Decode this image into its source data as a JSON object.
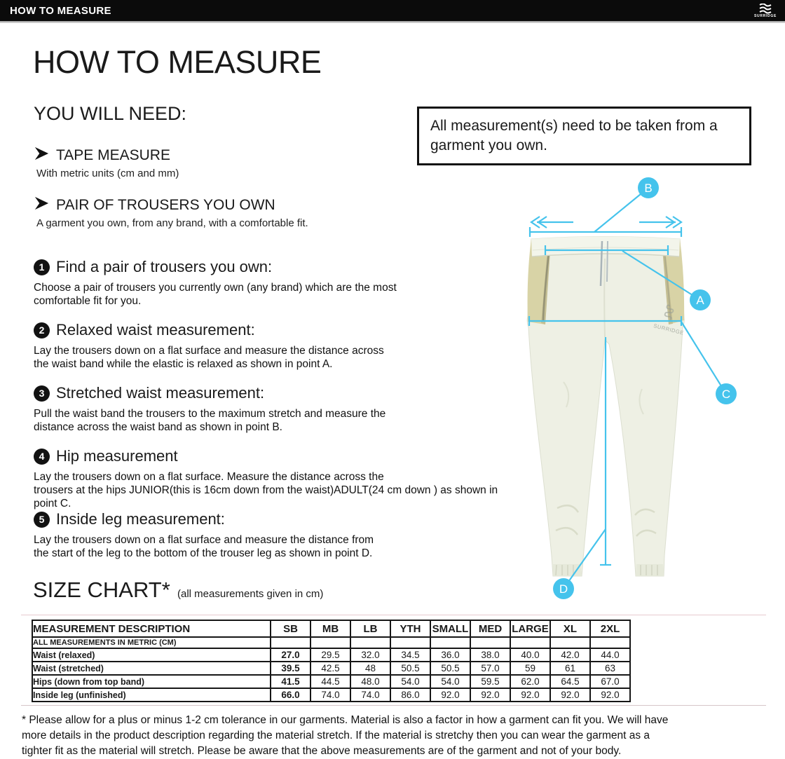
{
  "theme": {
    "accent": "#45c3ec",
    "header_bg": "#0b0b0b",
    "trouser_body": "#eef0e4",
    "trouser_panel": "#d8d3a6"
  },
  "header": {
    "title": "HOW TO MEASURE",
    "brand": "SURRIDGE"
  },
  "intro": {
    "title": "HOW TO MEASURE",
    "need_heading": "YOU WILL NEED:",
    "need_items": [
      {
        "icon": "arrow-bullet-icon",
        "title": "TAPE MEASURE",
        "subtitle": "With metric units (cm and mm)"
      },
      {
        "icon": "arrow-bullet-icon",
        "title": "PAIR OF TROUSERS YOU OWN",
        "subtitle": "A garment you own, from any brand, with a comfortable fit."
      }
    ]
  },
  "notice": "All measurement(s) need to be taken from a\ngarment you own.",
  "steps": [
    {
      "num": "1",
      "title": "Find a pair of trousers you own:",
      "body": "Choose a pair of trousers you currently own (any brand) which are the most\ncomfortable fit for you."
    },
    {
      "num": "2",
      "title": "Relaxed waist measurement:",
      "body": "Lay the trousers down on a flat surface and measure the distance across\nthe waist band while the elastic is relaxed as shown in point A."
    },
    {
      "num": "3",
      "title": "Stretched waist measurement:",
      "body": "Pull the waist band the trousers to the maximum stretch and measure the\ndistance across the waist band as shown in point B."
    },
    {
      "num": "4",
      "title": "Hip measurement",
      "body": "Lay the trousers down on a flat surface. Measure the distance across the\ntrousers at the hips JUNIOR(this is 16cm down from the waist)ADULT(24 cm down ) as shown in point C."
    },
    {
      "num": "5",
      "title": "Inside leg measurement:",
      "body": "Lay the trousers down on a flat surface and measure the distance from\nthe start of the leg to the bottom of the trouser leg as shown in point D."
    }
  ],
  "illustration": {
    "points": [
      "A",
      "B",
      "C",
      "D"
    ],
    "watermark": "SURRIDGE"
  },
  "size_chart": {
    "title": "SIZE CHART*",
    "subtitle": "(all measurements given in cm)",
    "columns": [
      "MEASUREMENT DESCRIPTION",
      "SB",
      "MB",
      "LB",
      "YTH",
      "SMALL",
      "MED",
      "LARGE",
      "XL",
      "2XL"
    ],
    "note_row": "ALL MEASUREMENTS IN METRIC (CM)",
    "rows": [
      {
        "label": "Waist (relaxed)",
        "values": [
          "27.0",
          "29.5",
          "32.0",
          "34.5",
          "36.0",
          "38.0",
          "40.0",
          "42.0",
          "44.0"
        ]
      },
      {
        "label": "Waist (stretched)",
        "values": [
          "39.5",
          "42.5",
          "48",
          "50.5",
          "50.5",
          "57.0",
          "59",
          "61",
          "63"
        ]
      },
      {
        "label": "Hips (down from top band)",
        "values": [
          "41.5",
          "44.5",
          "48.0",
          "54.0",
          "54.0",
          "59.5",
          "62.0",
          "64.5",
          "67.0"
        ]
      },
      {
        "label": "Inside leg (unfinished)",
        "values": [
          "66.0",
          "74.0",
          "74.0",
          "86.0",
          "92.0",
          "92.0",
          "92.0",
          "92.0",
          "92.0"
        ]
      }
    ]
  },
  "footnote": "* Please allow for a plus or minus 1-2 cm tolerance in our garments. Material is also a factor in how a garment can fit you. We will have\nmore details in the product description regarding the material stretch.  If the material is stretchy then you can wear the garment as a\ntighter fit as the material will stretch.  Please be aware that the above measurements are of the garment and not of your body."
}
